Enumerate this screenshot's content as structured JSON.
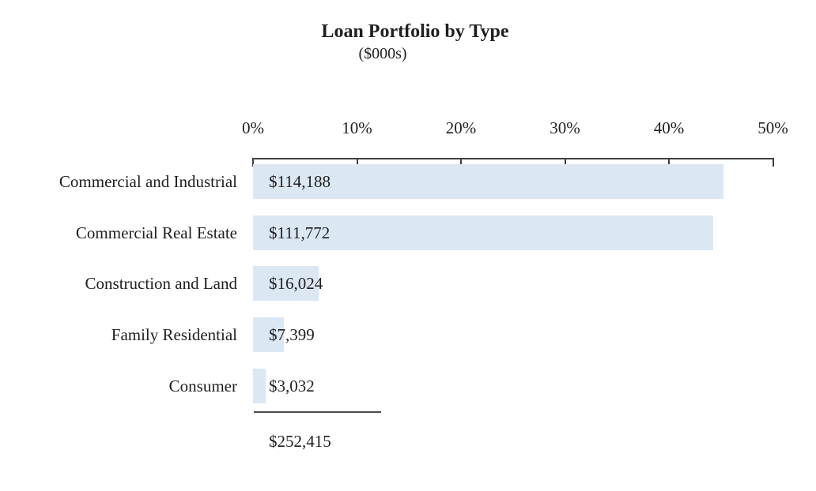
{
  "page": {
    "background": "#ffffff"
  },
  "chart_data": {
    "type": "bar",
    "orientation": "horizontal",
    "title": "Loan Portfolio by Type",
    "subtitle": "($000s)",
    "categories": [
      "Commercial and Industrial",
      "Commercial Real Estate",
      "Construction and Land",
      "Family Residential",
      "Consumer"
    ],
    "values": [
      114188,
      111772,
      16024,
      7399,
      3032
    ],
    "value_labels": [
      "$114,188",
      "$111,772",
      "$16,024",
      "$7,399",
      "$3,032"
    ],
    "share_pct": [
      45.2,
      44.3,
      6.3,
      2.9,
      1.2
    ],
    "total": 252415,
    "total_label": "$252,415",
    "x_axis": {
      "position": "top",
      "unit": "%",
      "min": 0,
      "max": 50,
      "tick_labels": [
        "0%",
        "10%",
        "20%",
        "30%",
        "40%",
        "50%"
      ]
    },
    "grid": false,
    "legend": false,
    "value_label_position": "inside-left, overflowing for short bars",
    "colors": {
      "bar_fill": "#dbe7f3",
      "axis": "#3f3f3f",
      "text": "#1f1f1f",
      "total_rule": "#4a4a4a"
    }
  }
}
